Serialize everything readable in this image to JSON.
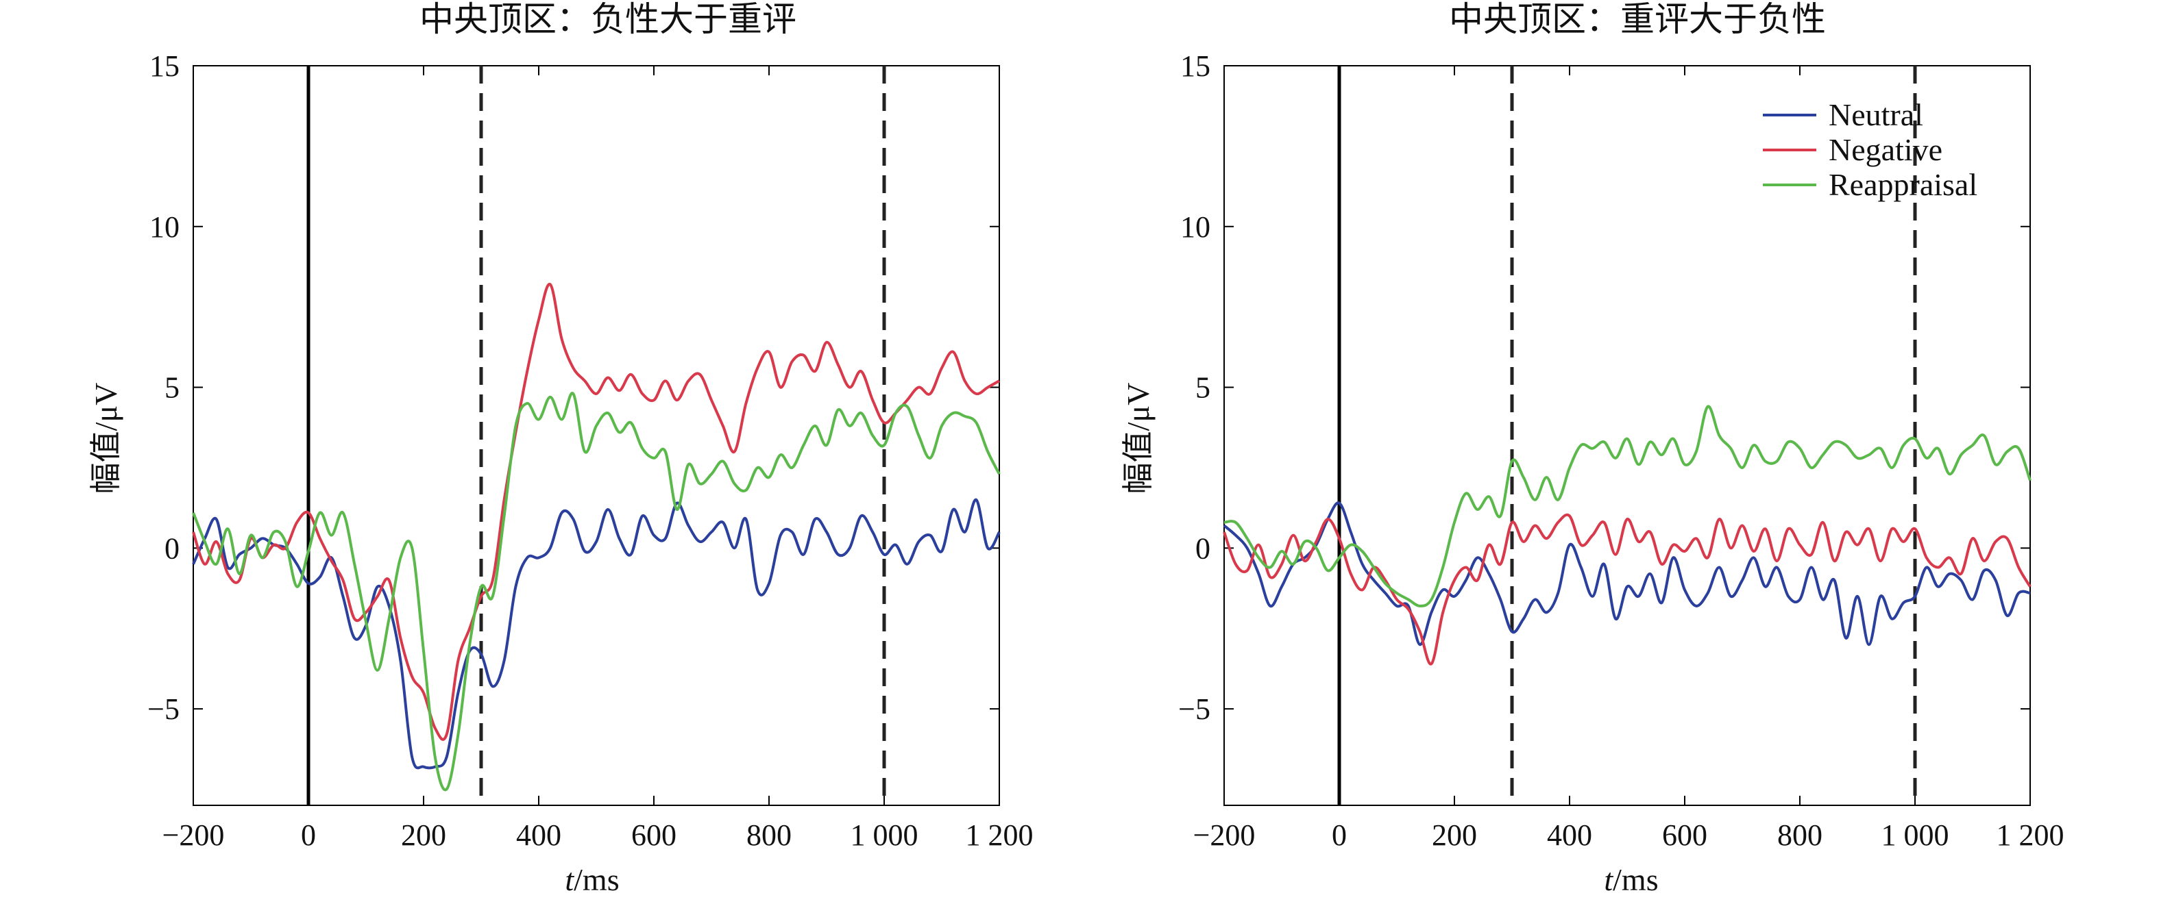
{
  "figure": {
    "panels": [
      {
        "title": "中央顶区：负性大于重评",
        "xlabel_var": "t",
        "xlabel_unit": "/ms",
        "ylabel": "幅值/μV"
      },
      {
        "title": "中央顶区：重评大于负性",
        "xlabel_var": "t",
        "xlabel_unit": "/ms",
        "ylabel": "幅值/μV"
      }
    ],
    "legend": [
      "Neutral",
      "Negative",
      "Reappraisal"
    ]
  },
  "chart_data": [
    {
      "type": "line",
      "title": "中央顶区：负性大于重评",
      "xlabel": "t/ms",
      "ylabel": "幅值/μV",
      "xlim": [
        -200,
        1200
      ],
      "ylim": [
        -8,
        15
      ],
      "xticks": [
        -200,
        0,
        200,
        400,
        600,
        800,
        1000,
        1200
      ],
      "xtick_labels": [
        "−200",
        "0",
        "200",
        "400",
        "600",
        "800",
        "1 000",
        "1 200"
      ],
      "yticks": [
        -5,
        0,
        5,
        10,
        15
      ],
      "ytick_labels": [
        "−5",
        "0",
        "5",
        "10",
        "15"
      ],
      "vlines_solid": [
        0
      ],
      "vlines_dashed": [
        300,
        1000
      ],
      "legend": false,
      "grid": false,
      "x": [
        -200,
        -180,
        -160,
        -140,
        -120,
        -100,
        -80,
        -60,
        -40,
        -20,
        0,
        20,
        40,
        60,
        80,
        100,
        120,
        140,
        160,
        180,
        200,
        220,
        240,
        260,
        280,
        300,
        320,
        340,
        360,
        380,
        400,
        420,
        440,
        460,
        480,
        500,
        520,
        540,
        560,
        580,
        600,
        620,
        640,
        660,
        680,
        700,
        720,
        740,
        760,
        780,
        800,
        820,
        840,
        860,
        880,
        900,
        920,
        940,
        960,
        980,
        1000,
        1020,
        1040,
        1060,
        1080,
        1100,
        1120,
        1140,
        1160,
        1180,
        1200
      ],
      "series": [
        {
          "name": "Neutral",
          "color": "#2b3f9c",
          "values": [
            -0.5,
            0.3,
            0.9,
            -0.6,
            -0.2,
            0.0,
            0.3,
            0.1,
            0.0,
            -0.5,
            -1.1,
            -0.9,
            -0.3,
            -1.5,
            -2.8,
            -2.4,
            -1.2,
            -1.8,
            -3.5,
            -6.5,
            -6.8,
            -6.8,
            -6.5,
            -4.5,
            -3.2,
            -3.3,
            -4.3,
            -3.5,
            -1.2,
            -0.3,
            -0.3,
            0.0,
            1.1,
            0.9,
            -0.1,
            0.2,
            1.2,
            0.3,
            -0.2,
            1.0,
            0.4,
            0.3,
            1.4,
            0.7,
            0.2,
            0.5,
            0.8,
            0.0,
            0.9,
            -1.3,
            -1.1,
            0.4,
            0.5,
            -0.2,
            0.9,
            0.5,
            -0.2,
            0.0,
            1.0,
            0.5,
            -0.2,
            0.1,
            -0.5,
            0.2,
            0.4,
            -0.1,
            1.2,
            0.5,
            1.5,
            0.0,
            0.5
          ]
        },
        {
          "name": "Negative",
          "color": "#d83a4c",
          "values": [
            0.5,
            -0.5,
            0.2,
            -0.8,
            -1.0,
            0.3,
            -0.3,
            0.1,
            0.0,
            0.8,
            1.1,
            0.3,
            -0.4,
            -1.0,
            -2.2,
            -2.0,
            -1.5,
            -1.0,
            -2.8,
            -4.0,
            -4.5,
            -5.6,
            -5.8,
            -3.5,
            -2.5,
            -1.5,
            -1.0,
            1.5,
            3.6,
            5.5,
            7.1,
            8.2,
            6.5,
            5.6,
            5.2,
            4.8,
            5.3,
            4.9,
            5.4,
            4.8,
            4.6,
            5.2,
            4.6,
            5.2,
            5.4,
            4.6,
            3.8,
            3.0,
            4.5,
            5.6,
            6.1,
            5.0,
            5.8,
            6.0,
            5.5,
            6.4,
            5.7,
            5.0,
            5.5,
            4.6,
            3.9,
            4.2,
            4.6,
            5.0,
            4.8,
            5.6,
            6.1,
            5.2,
            4.8,
            5.0,
            5.2
          ]
        },
        {
          "name": "Reappraisal",
          "color": "#5bb84a",
          "values": [
            1.1,
            0.2,
            -0.5,
            0.6,
            -0.8,
            0.4,
            -0.3,
            0.5,
            0.2,
            -1.2,
            -0.1,
            1.1,
            0.4,
            1.1,
            -0.5,
            -2.3,
            -3.8,
            -2.2,
            -0.3,
            0.0,
            -3.2,
            -6.5,
            -7.5,
            -5.8,
            -3.0,
            -1.2,
            -1.5,
            1.0,
            3.8,
            4.5,
            4.0,
            4.7,
            4.0,
            4.8,
            3.0,
            3.8,
            4.2,
            3.6,
            3.9,
            3.1,
            2.8,
            3.0,
            1.2,
            2.6,
            2.0,
            2.3,
            2.7,
            2.0,
            1.8,
            2.5,
            2.2,
            2.9,
            2.5,
            3.2,
            3.8,
            3.2,
            4.3,
            3.8,
            4.2,
            3.5,
            3.2,
            4.2,
            4.4,
            3.5,
            2.8,
            3.8,
            4.2,
            4.1,
            3.9,
            3.0,
            2.3
          ]
        }
      ]
    },
    {
      "type": "line",
      "title": "中央顶区：重评大于负性",
      "xlabel": "t/ms",
      "ylabel": "幅值/μV",
      "xlim": [
        -200,
        1200
      ],
      "ylim": [
        -8,
        15
      ],
      "xticks": [
        -200,
        0,
        200,
        400,
        600,
        800,
        1000,
        1200
      ],
      "xtick_labels": [
        "−200",
        "0",
        "200",
        "400",
        "600",
        "800",
        "1 000",
        "1 200"
      ],
      "yticks": [
        -5,
        0,
        5,
        10,
        15
      ],
      "ytick_labels": [
        "−5",
        "0",
        "5",
        "10",
        "15"
      ],
      "vlines_solid": [
        0
      ],
      "vlines_dashed": [
        300,
        1000
      ],
      "legend": true,
      "legend_position": "top-right",
      "grid": false,
      "x": [
        -200,
        -180,
        -160,
        -140,
        -120,
        -100,
        -80,
        -60,
        -40,
        -20,
        0,
        20,
        40,
        60,
        80,
        100,
        120,
        140,
        160,
        180,
        200,
        220,
        240,
        260,
        280,
        300,
        320,
        340,
        360,
        380,
        400,
        420,
        440,
        460,
        480,
        500,
        520,
        540,
        560,
        580,
        600,
        620,
        640,
        660,
        680,
        700,
        720,
        740,
        760,
        780,
        800,
        820,
        840,
        860,
        880,
        900,
        920,
        940,
        960,
        980,
        1000,
        1020,
        1040,
        1060,
        1080,
        1100,
        1120,
        1140,
        1160,
        1180,
        1200
      ],
      "series": [
        {
          "name": "Neutral",
          "color": "#2b3f9c",
          "values": [
            0.7,
            0.4,
            0.0,
            -0.8,
            -1.8,
            -1.2,
            -0.5,
            -0.3,
            0.1,
            0.9,
            1.4,
            0.5,
            -0.5,
            -1.0,
            -1.4,
            -1.8,
            -1.8,
            -3.0,
            -2.0,
            -1.3,
            -1.5,
            -1.0,
            -0.3,
            -0.8,
            -1.6,
            -2.6,
            -2.2,
            -1.6,
            -2.0,
            -1.4,
            0.1,
            -0.6,
            -1.5,
            -0.5,
            -2.2,
            -1.2,
            -1.5,
            -0.8,
            -1.7,
            -0.3,
            -1.3,
            -1.8,
            -1.4,
            -0.6,
            -1.5,
            -1.0,
            -0.3,
            -1.2,
            -0.6,
            -1.5,
            -1.6,
            -0.6,
            -1.6,
            -1.0,
            -2.8,
            -1.5,
            -3.0,
            -1.5,
            -2.2,
            -1.7,
            -1.5,
            -0.6,
            -1.2,
            -0.8,
            -1.0,
            -1.6,
            -0.7,
            -1.0,
            -2.1,
            -1.4,
            -1.4
          ]
        },
        {
          "name": "Negative",
          "color": "#d83a4c",
          "values": [
            0.5,
            -0.5,
            -0.7,
            0.1,
            -0.9,
            -0.5,
            0.4,
            -0.4,
            0.2,
            0.9,
            0.3,
            -0.8,
            -1.3,
            -0.6,
            -1.0,
            -1.6,
            -1.9,
            -2.6,
            -3.6,
            -2.0,
            -1.0,
            -0.6,
            -1.0,
            0.1,
            -0.5,
            0.8,
            0.2,
            0.7,
            0.3,
            0.8,
            1.0,
            0.1,
            0.4,
            0.8,
            -0.2,
            0.9,
            0.2,
            0.5,
            -0.5,
            0.1,
            -0.1,
            0.3,
            -0.3,
            0.9,
            0.0,
            0.7,
            -0.1,
            0.6,
            -0.4,
            0.6,
            0.1,
            -0.2,
            0.8,
            -0.4,
            0.5,
            0.1,
            0.6,
            -0.4,
            0.6,
            0.2,
            0.6,
            -0.3,
            -0.6,
            -0.3,
            -0.8,
            0.3,
            -0.4,
            0.2,
            0.3,
            -0.6,
            -1.2
          ]
        },
        {
          "name": "Reappraisal",
          "color": "#5bb84a",
          "values": [
            0.8,
            0.8,
            0.3,
            -0.3,
            -0.6,
            -0.1,
            -0.5,
            0.2,
            0.0,
            -0.7,
            -0.3,
            0.1,
            -0.1,
            -0.6,
            -1.1,
            -1.4,
            -1.6,
            -1.8,
            -1.6,
            -0.6,
            0.8,
            1.7,
            1.2,
            1.6,
            1.0,
            2.7,
            2.2,
            1.5,
            2.2,
            1.5,
            2.5,
            3.2,
            3.1,
            3.3,
            2.8,
            3.4,
            2.6,
            3.3,
            2.9,
            3.4,
            2.6,
            3.0,
            4.4,
            3.5,
            3.1,
            2.5,
            3.2,
            2.7,
            2.7,
            3.3,
            3.1,
            2.5,
            2.9,
            3.3,
            3.2,
            2.8,
            2.9,
            3.1,
            2.5,
            3.2,
            3.4,
            2.8,
            3.1,
            2.3,
            2.9,
            3.2,
            3.5,
            2.6,
            3.0,
            3.1,
            2.1
          ]
        }
      ]
    }
  ]
}
